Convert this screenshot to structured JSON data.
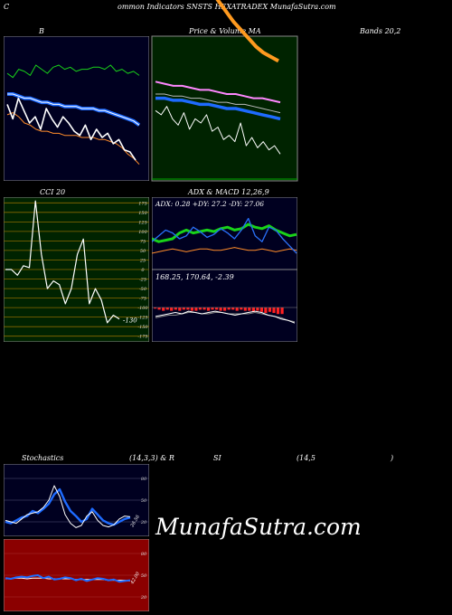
{
  "header": {
    "left": "C",
    "center": "ommon  Indicators SNSTS  HEXATRADEX  MunafaSutra.com"
  },
  "labels": {
    "bollinger": "B",
    "price_ma": "Price   &   Volume   MA",
    "bands": "Bands 20,2",
    "cci": "CCI 20",
    "adx_macd": "ADX  & MACD 12,26,9",
    "stoch_a": "Stochastics",
    "stoch_b": "(14,3,3) & R",
    "stoch_c": "SI",
    "stoch_d": "(14,5",
    "stoch_e": ")"
  },
  "watermark": "MunafaSutra.com",
  "colors": {
    "panel_dark": "#000020",
    "panel_green": "#002300",
    "panel_red": "#8b0000",
    "blue": "#1e6bff",
    "green": "#19d219",
    "orange": "#ff9a1f"
  },
  "chart_data": [
    {
      "id": "bollinger",
      "type": "line",
      "series": [
        {
          "values": [
            82,
            80,
            84,
            83,
            81,
            86,
            84,
            82,
            85,
            86,
            84,
            85,
            83,
            84,
            84,
            85,
            85,
            84,
            86,
            83,
            84,
            82,
            83,
            81
          ]
        },
        {
          "values": [
            72,
            72,
            71,
            70,
            70,
            69,
            68,
            68,
            67,
            67,
            66,
            66,
            66,
            65,
            65,
            65,
            64,
            64,
            63,
            62,
            61,
            60,
            59,
            57
          ]
        },
        {
          "values": [
            62,
            63,
            61,
            58,
            57,
            55,
            54,
            54,
            53,
            53,
            52,
            52,
            52,
            51,
            51,
            51,
            50,
            50,
            49,
            48,
            46,
            43,
            41,
            38
          ]
        },
        {
          "values": [
            67,
            60,
            70,
            64,
            58,
            61,
            55,
            65,
            60,
            56,
            61,
            58,
            54,
            52,
            57,
            50,
            55,
            51,
            53,
            48,
            50,
            45,
            44,
            40
          ]
        }
      ]
    },
    {
      "id": "price_ma",
      "type": "line",
      "series": [
        {
          "values": [
            150,
            145,
            140,
            134,
            128,
            122,
            117,
            112,
            107,
            103,
            99,
            95,
            92,
            90,
            88
          ]
        },
        {
          "values": [
            78,
            77,
            76,
            76,
            75,
            74,
            74,
            73,
            72,
            72,
            71,
            70,
            70,
            69,
            68
          ]
        },
        {
          "values": [
            72,
            72,
            71,
            71,
            70,
            70,
            69,
            68,
            68,
            67,
            67,
            66,
            65,
            64,
            63
          ]
        },
        {
          "values": [
            70,
            70,
            69,
            69,
            68,
            67,
            67,
            66,
            65,
            65,
            64,
            63,
            62,
            61,
            60
          ]
        },
        {
          "values": [
            64,
            62,
            66,
            60,
            57,
            63,
            55,
            60,
            58,
            62,
            54,
            56,
            50,
            52,
            49,
            58,
            47,
            51,
            46,
            49,
            45,
            47,
            43
          ]
        }
      ]
    },
    {
      "id": "cci",
      "type": "line",
      "yticks": [
        175,
        150,
        125,
        100,
        75,
        50,
        25,
        0,
        -25,
        -50,
        -75,
        -100,
        -125,
        -150,
        -175
      ],
      "last_label": "-130",
      "series": [
        {
          "values": [
            0,
            0,
            -15,
            10,
            5,
            180,
            40,
            -50,
            -30,
            -40,
            -90,
            -50,
            40,
            80,
            -90,
            -50,
            -80,
            -140,
            -120,
            -130
          ]
        }
      ]
    },
    {
      "id": "adx",
      "type": "line",
      "readout": "ADX: 0.28  +DY: 27.2  -DY: 27.06",
      "series": [
        {
          "values": [
            20,
            18,
            19,
            20,
            24,
            26,
            24,
            25,
            26,
            25,
            27,
            28,
            26,
            27,
            30,
            28,
            27,
            29,
            26,
            24,
            22,
            23
          ]
        },
        {
          "values": [
            18,
            22,
            26,
            24,
            20,
            22,
            28,
            25,
            21,
            23,
            27,
            24,
            20,
            26,
            34,
            22,
            18,
            28,
            26,
            20,
            15,
            10
          ]
        },
        {
          "values": [
            10,
            11,
            12,
            13,
            12,
            11,
            12,
            13,
            13,
            12,
            12,
            13,
            14,
            13,
            12,
            12,
            13,
            12,
            11,
            12,
            13,
            12
          ]
        }
      ]
    },
    {
      "id": "macd",
      "type": "bar",
      "readout": "168.25,   170.64,   -2.39",
      "series": [
        {
          "values": [
            -1,
            -2,
            -3,
            -2,
            -3,
            -2,
            -3,
            -2,
            -2,
            -3,
            -3,
            -2,
            -2,
            -3,
            -2,
            -2,
            -3,
            -3,
            -2,
            -2,
            -3,
            -2,
            -3,
            -3,
            -4,
            -3,
            -4,
            -5,
            -4,
            -5,
            -6,
            -6
          ]
        },
        {
          "values": [
            168,
            169,
            170,
            171,
            170,
            172,
            171,
            170,
            171,
            172,
            171,
            170,
            169,
            170,
            171,
            172,
            171,
            169,
            168,
            166,
            165,
            163
          ]
        },
        {
          "values": [
            167,
            168,
            169,
            169,
            170,
            171,
            171,
            170,
            170,
            171,
            171,
            170,
            170,
            170,
            170,
            171,
            170,
            169,
            168,
            167,
            165,
            164
          ]
        }
      ]
    },
    {
      "id": "stochastics",
      "type": "line",
      "yticks": [
        80,
        50,
        20
      ],
      "last_label": "26.56",
      "series": [
        {
          "values": [
            20,
            18,
            22,
            26,
            28,
            35,
            32,
            38,
            45,
            58,
            65,
            48,
            35,
            28,
            20,
            24,
            38,
            30,
            22,
            18,
            16,
            20,
            24,
            26
          ]
        },
        {
          "values": [
            22,
            20,
            18,
            24,
            30,
            32,
            34,
            40,
            50,
            70,
            55,
            30,
            18,
            12,
            15,
            28,
            34,
            22,
            15,
            13,
            16,
            24,
            28,
            27
          ]
        }
      ]
    },
    {
      "id": "rsi",
      "type": "line",
      "yticks": [
        80,
        50,
        20
      ],
      "last_label": "42.00",
      "series": [
        {
          "values": [
            46,
            45,
            47,
            48,
            47,
            49,
            50,
            46,
            48,
            44,
            45,
            47,
            46,
            43,
            45,
            42,
            44,
            46,
            45,
            43,
            44,
            41,
            42,
            43
          ]
        },
        {
          "values": [
            45,
            45,
            46,
            46,
            45,
            46,
            46,
            46,
            45,
            45,
            45,
            45,
            45,
            44,
            44,
            44,
            44,
            44,
            44,
            43,
            43,
            43,
            43,
            42
          ]
        }
      ]
    }
  ]
}
